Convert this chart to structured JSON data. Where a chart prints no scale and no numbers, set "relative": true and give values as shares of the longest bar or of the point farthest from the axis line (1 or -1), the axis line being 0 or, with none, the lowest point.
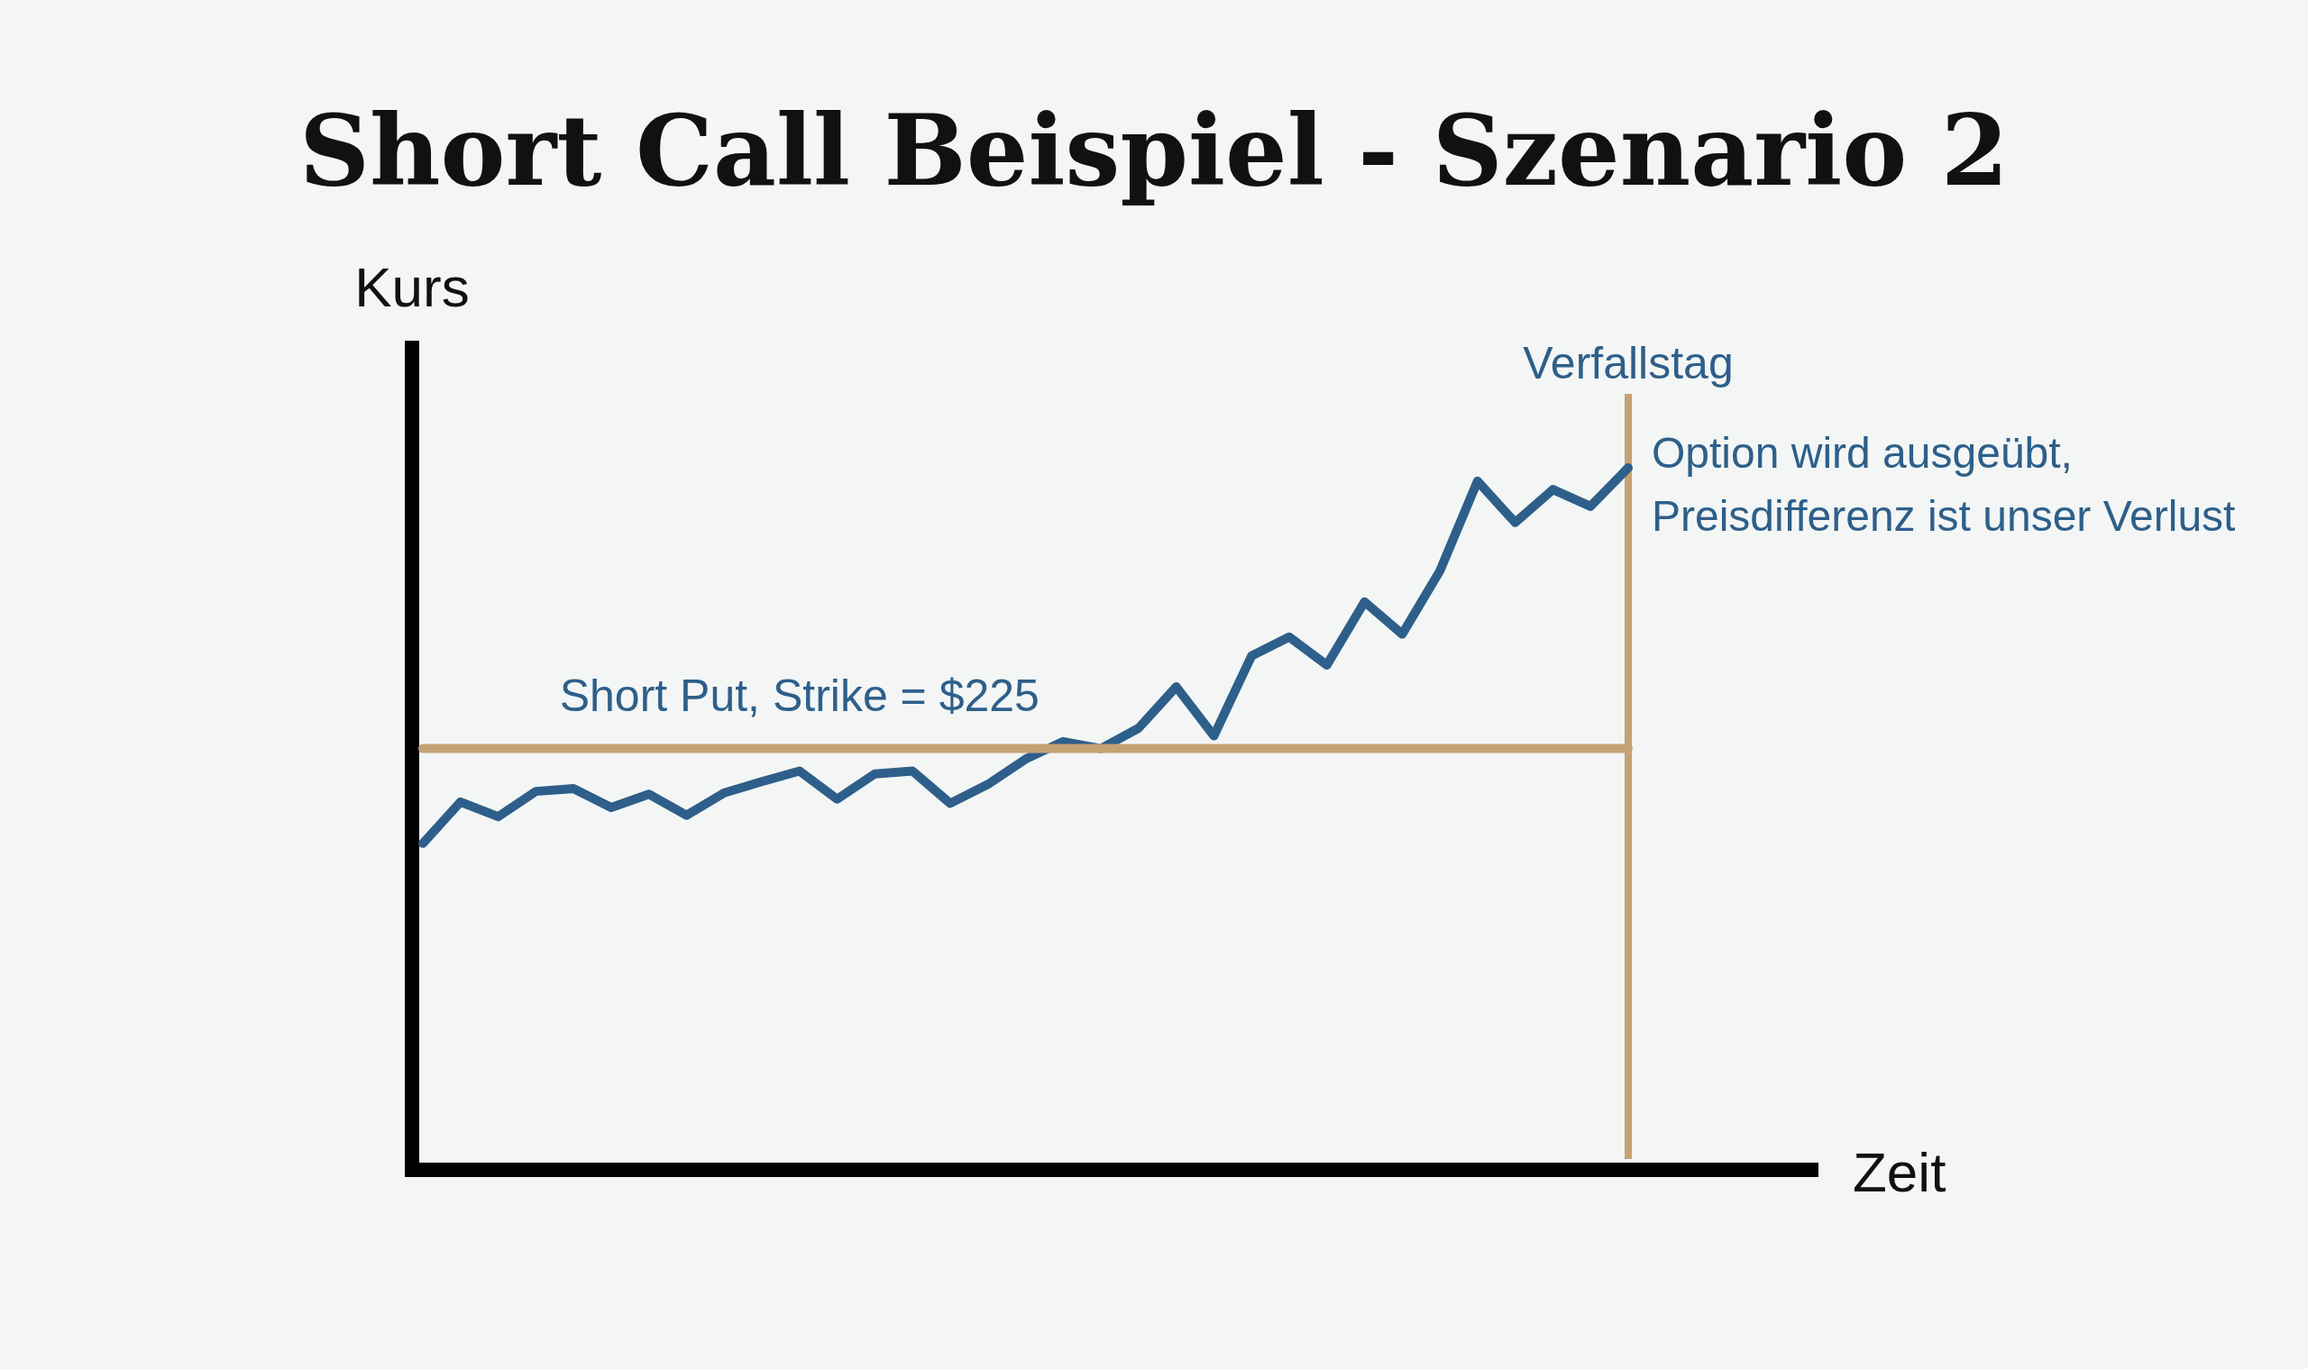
{
  "chart_data": {
    "type": "line",
    "title": "Short Call Beispiel - Szenario 2",
    "xlabel": "Zeit",
    "ylabel": "Kurs",
    "relative": true,
    "categories": [
      null,
      null,
      null,
      null,
      null,
      null,
      null,
      null,
      null,
      null,
      null,
      null,
      null,
      null,
      null,
      null,
      null,
      null,
      null,
      null,
      null,
      null,
      null,
      null,
      null,
      null,
      null,
      null,
      null,
      null,
      null,
      null,
      null
    ],
    "series": [
      {
        "color": "#2e5f8a",
        "values": [
          0.465,
          0.524,
          0.503,
          0.539,
          0.543,
          0.516,
          0.535,
          0.505,
          0.537,
          0.553,
          0.568,
          0.528,
          0.564,
          0.568,
          0.522,
          0.549,
          0.585,
          0.61,
          0.6,
          0.629,
          0.688,
          0.618,
          0.732,
          0.759,
          0.719,
          0.809,
          0.763,
          0.853,
          0.981,
          0.922,
          0.969,
          0.945,
          1
        ]
      },
      {
        "name": "Short Put, Strike = $225",
        "color": "#c4a274",
        "values": [
          0.6,
          0.6,
          0.6,
          0.6,
          0.6,
          0.6,
          0.6,
          0.6,
          0.6,
          0.6,
          0.6,
          0.6,
          0.6,
          0.6,
          0.6,
          0.6,
          0.6,
          0.6,
          0.6,
          0.6,
          0.6,
          0.6,
          0.6,
          0.6,
          0.6,
          0.6,
          0.6,
          0.6,
          0.6,
          0.6,
          0.6,
          0.6,
          0.6
        ]
      }
    ],
    "ref_lines": [
      {
        "axis": "x",
        "label": "Verfallstag",
        "color": "#c4a274"
      }
    ],
    "annotations": [
      "Option wird ausgeübt, Preisdifferenz ist unser Verlust"
    ]
  }
}
